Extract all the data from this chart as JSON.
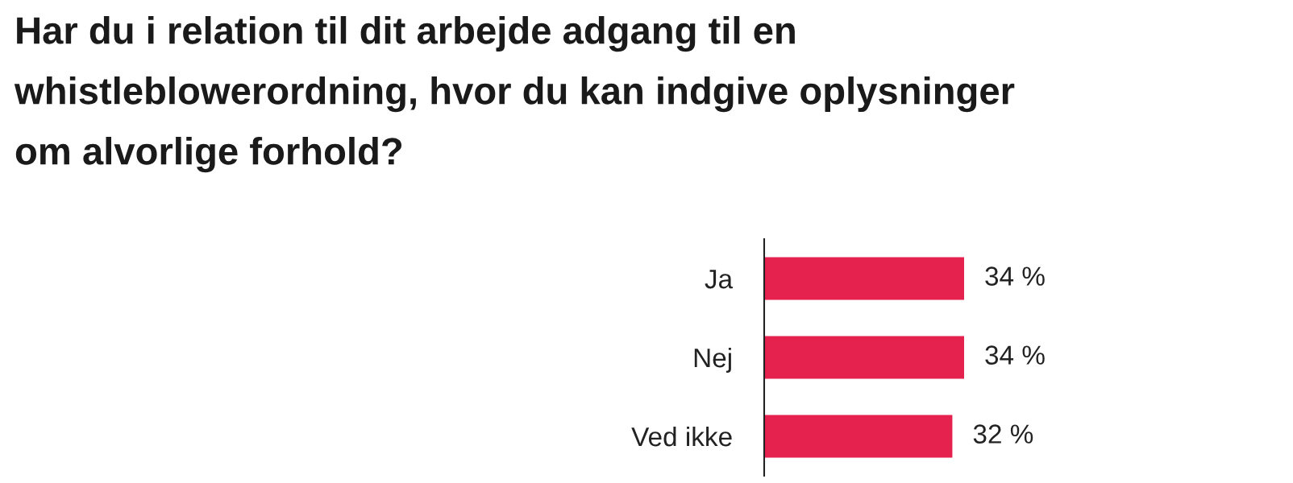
{
  "chart_data": {
    "type": "bar",
    "orientation": "horizontal",
    "title": "Har du i relation til dit arbejde adgang til en whistleblowerordning, hvor du kan indgive oplysninger om alvorlige forhold?",
    "categories": [
      "Ja",
      "Nej",
      "Ved ikke"
    ],
    "values": [
      34,
      34,
      32
    ],
    "value_labels": [
      "34 %",
      "34 %",
      "32 %"
    ],
    "color": "#e5214e"
  }
}
